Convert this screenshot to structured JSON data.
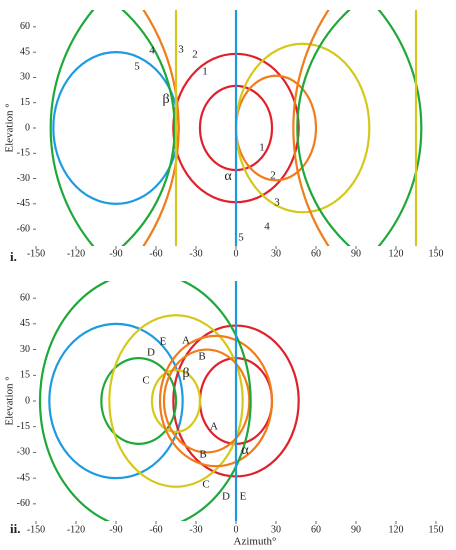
{
  "chart_data": [
    {
      "type": "circles",
      "panel_label": "i.",
      "y_label": "Elevation °",
      "xlim": [
        -150,
        150
      ],
      "ylim": [
        -70,
        70
      ],
      "xticks": [
        -150,
        -120,
        -90,
        -60,
        -30,
        0,
        30,
        60,
        90,
        120,
        150
      ],
      "yticks": [
        -60,
        -45,
        -30,
        -15,
        0,
        15,
        30,
        45,
        60
      ],
      "circles": [
        {
          "color": "#1e9be0",
          "cx": -90,
          "cy": 0,
          "rx": 47,
          "ry": 45
        },
        {
          "color": "#e0202a",
          "cx": 0,
          "cy": 0,
          "rx": 47,
          "ry": 44
        },
        {
          "color": "#e0202a",
          "cx": 0,
          "cy": 0,
          "rx": 27,
          "ry": 25
        },
        {
          "color": "#f07c1a",
          "cx": 30,
          "cy": 0,
          "rx": 30,
          "ry": 31
        },
        {
          "color": "#d6c81a",
          "cx": 50,
          "cy": 0,
          "rx": 50,
          "ry": 50
        },
        {
          "color": "#1ea83a",
          "cx": -166,
          "cy": 0,
          "rx": 120,
          "ry": 95
        },
        {
          "color": "#1ea83a",
          "cx": 0,
          "cy": 0,
          "rx": 139,
          "ry": 110
        },
        {
          "color": "#1ea83a",
          "cx": 166,
          "cy": 0,
          "rx": 120,
          "ry": 95
        },
        {
          "color": "#f07c1a",
          "cx": -205,
          "cy": 0,
          "rx": 162,
          "ry": 128
        },
        {
          "color": "#f07c1a",
          "cx": 205,
          "cy": 0,
          "rx": 162,
          "ry": 128
        }
      ],
      "vlines": [
        {
          "color": "#d6c81a",
          "x": -45
        },
        {
          "color": "#1e9be0",
          "x": 0
        },
        {
          "color": "#d6c81a",
          "x": 135
        }
      ],
      "labels": [
        "1",
        "2",
        "3",
        "4",
        "5",
        "β",
        "α",
        "1",
        "2",
        "3",
        "4",
        "5"
      ]
    },
    {
      "type": "circles",
      "panel_label": "ii.",
      "y_label": "Elevation °",
      "x_label": "Azimuth°",
      "xlim": [
        -150,
        150
      ],
      "ylim": [
        -70,
        70
      ],
      "xticks": [
        -150,
        -120,
        -90,
        -60,
        -30,
        0,
        30,
        60,
        90,
        120,
        150
      ],
      "yticks": [
        -60,
        -45,
        -30,
        -15,
        0,
        15,
        30,
        45,
        60
      ],
      "circles": [
        {
          "color": "#1e9be0",
          "cx": -90,
          "cy": 0,
          "rx": 50,
          "ry": 45
        },
        {
          "color": "#e0202a",
          "cx": 0,
          "cy": 0,
          "rx": 47,
          "ry": 44
        },
        {
          "color": "#e0202a",
          "cx": 0,
          "cy": 0,
          "rx": 27,
          "ry": 25
        },
        {
          "color": "#1ea83a",
          "cx": -73,
          "cy": 0,
          "rx": 28,
          "ry": 25
        },
        {
          "color": "#d6c81a",
          "cx": -45,
          "cy": 0,
          "rx": 50,
          "ry": 50
        },
        {
          "color": "#d6c81a",
          "cx": -45,
          "cy": 0,
          "rx": 18,
          "ry": 18
        },
        {
          "color": "#f07c1a",
          "cx": -22,
          "cy": 0,
          "rx": 32,
          "ry": 30
        },
        {
          "color": "#f07c1a",
          "cx": -15,
          "cy": 0,
          "rx": 42,
          "ry": 38
        },
        {
          "color": "#1ea83a",
          "cx": -68,
          "cy": 0,
          "rx": 79,
          "ry": 75
        }
      ],
      "vlines": [
        {
          "color": "#1e9be0",
          "x": 0
        }
      ],
      "labels": [
        "E",
        "A",
        "D",
        "B",
        "C",
        "β",
        "A",
        "B",
        "α",
        "C",
        "D",
        "E"
      ]
    }
  ]
}
